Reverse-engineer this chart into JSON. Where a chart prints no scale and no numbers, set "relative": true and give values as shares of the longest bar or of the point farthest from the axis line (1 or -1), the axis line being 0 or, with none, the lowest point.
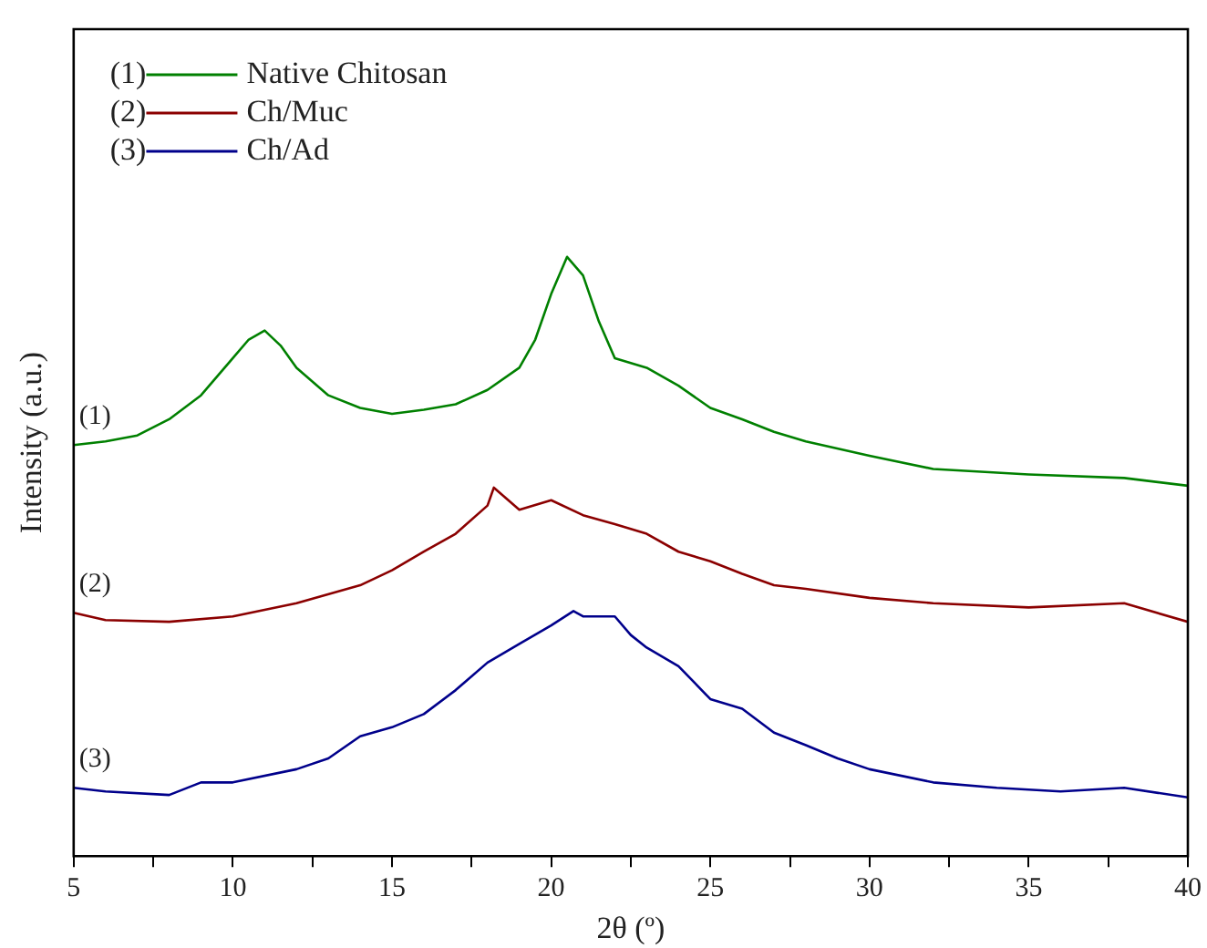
{
  "chart_data": {
    "type": "line",
    "xlabel": "2θ (º)",
    "ylabel": "Intensity (a.u.)",
    "relative": true,
    "xlim": [
      5,
      40
    ],
    "xticks": [
      5,
      {
        "value": 7.5,
        "label": null
      },
      10,
      {
        "value": 12.5,
        "label": null
      },
      15,
      {
        "value": 17.5,
        "label": null
      },
      20,
      {
        "value": 22.5,
        "label": null
      },
      25,
      {
        "value": 27.5,
        "label": null
      },
      30,
      {
        "value": 32.5,
        "label": null
      },
      35,
      {
        "value": 37.5,
        "label": null
      },
      40
    ],
    "grid": false,
    "legend": "top left",
    "marker": "none",
    "line_style": "solid",
    "annotations": [
      "(1)",
      "(2)",
      "(3)"
    ],
    "series": [
      {
        "name": "Native Chitosan",
        "color": "#008000",
        "x": [
          5,
          6,
          7,
          8,
          9,
          10,
          10.5,
          11,
          11.5,
          12,
          13,
          14,
          15,
          16,
          17,
          18,
          19,
          19.5,
          20,
          20.5,
          21,
          21.5,
          22,
          23,
          24,
          25,
          26,
          27,
          28,
          30,
          32,
          35,
          38,
          40
        ],
        "values": [
          0.686,
          0.692,
          0.702,
          0.729,
          0.769,
          0.831,
          0.862,
          0.877,
          0.852,
          0.815,
          0.769,
          0.748,
          0.738,
          0.745,
          0.754,
          0.778,
          0.815,
          0.862,
          0.938,
          1.0,
          0.969,
          0.892,
          0.831,
          0.815,
          0.785,
          0.748,
          0.729,
          0.708,
          0.692,
          0.668,
          0.646,
          0.637,
          0.631,
          0.618
        ]
      },
      {
        "name": "Ch/Muc",
        "color": "#8b0000",
        "x": [
          5,
          6,
          8,
          10,
          12,
          14,
          15,
          16,
          17,
          18,
          18.2,
          19,
          20,
          21,
          22,
          23,
          24,
          25,
          26,
          27,
          28,
          30,
          32,
          35,
          38,
          40
        ],
        "values": [
          0.406,
          0.394,
          0.391,
          0.4,
          0.422,
          0.452,
          0.477,
          0.508,
          0.538,
          0.585,
          0.615,
          0.578,
          0.594,
          0.569,
          0.554,
          0.538,
          0.508,
          0.492,
          0.471,
          0.452,
          0.446,
          0.431,
          0.422,
          0.415,
          0.422,
          0.391
        ]
      },
      {
        "name": "Ch/Ad",
        "color": "#00008b",
        "x": [
          5,
          6,
          8,
          9,
          10,
          12,
          13,
          14,
          15,
          16,
          17,
          18,
          19,
          20,
          20.7,
          21,
          22,
          22.5,
          23,
          24,
          25,
          26,
          27,
          28,
          29,
          30,
          32,
          34,
          36,
          38,
          40
        ],
        "values": [
          0.114,
          0.108,
          0.102,
          0.123,
          0.123,
          0.145,
          0.163,
          0.2,
          0.215,
          0.237,
          0.277,
          0.323,
          0.354,
          0.385,
          0.409,
          0.4,
          0.4,
          0.369,
          0.348,
          0.317,
          0.262,
          0.246,
          0.206,
          0.185,
          0.163,
          0.145,
          0.123,
          0.114,
          0.108,
          0.114,
          0.098
        ]
      }
    ]
  }
}
